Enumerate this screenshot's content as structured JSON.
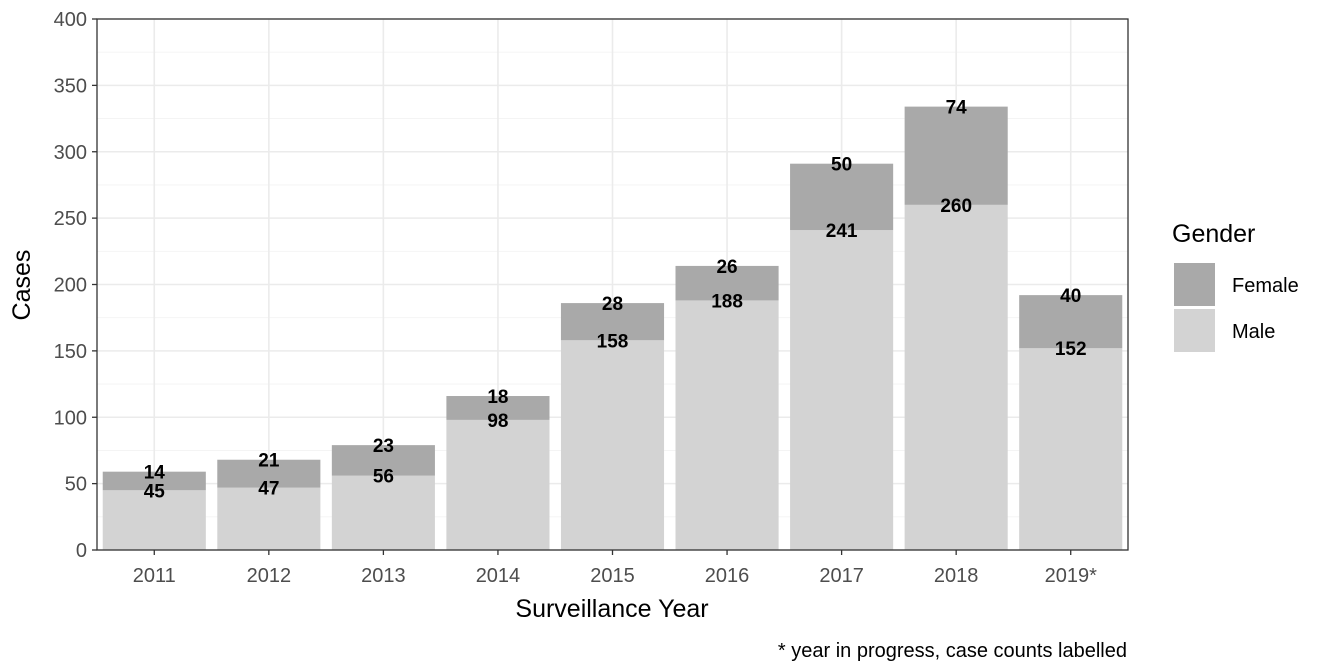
{
  "chart_data": {
    "type": "bar",
    "stacked": true,
    "categories": [
      "2011",
      "2012",
      "2013",
      "2014",
      "2015",
      "2016",
      "2017",
      "2018",
      "2019*"
    ],
    "series": [
      {
        "name": "Male",
        "values": [
          45,
          47,
          56,
          98,
          158,
          188,
          241,
          260,
          152
        ],
        "color": "#d3d3d3"
      },
      {
        "name": "Female",
        "values": [
          14,
          21,
          23,
          18,
          28,
          26,
          50,
          74,
          40
        ],
        "color": "#a9a9a9"
      }
    ],
    "xlabel": "Surveillance Year",
    "ylabel": "Cases",
    "ylim": [
      0,
      400
    ],
    "yticks": [
      0,
      50,
      100,
      150,
      200,
      250,
      300,
      350,
      400
    ],
    "grid": true,
    "legend": {
      "title": "Gender",
      "position": "right",
      "entries": [
        {
          "name": "Female",
          "color": "#a9a9a9"
        },
        {
          "name": "Male",
          "color": "#d3d3d3"
        }
      ]
    },
    "caption": "* year in progress, case counts labelled"
  }
}
